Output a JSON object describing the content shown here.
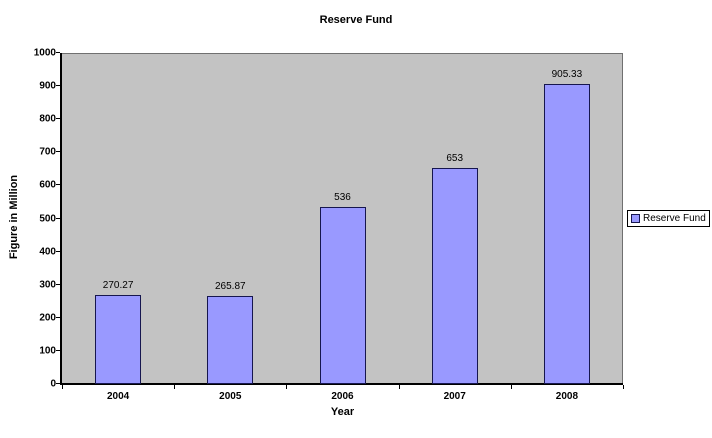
{
  "chart_data": {
    "type": "bar",
    "title": "Reserve Fund",
    "categories": [
      "2004",
      "2005",
      "2006",
      "2007",
      "2008"
    ],
    "values": [
      270.27,
      265.87,
      536,
      653,
      905.33
    ],
    "value_labels": [
      "270.27",
      "265.87",
      "536",
      "653",
      "905.33"
    ],
    "xlabel": "Year",
    "ylabel": "Figure in Million",
    "ylim": [
      0,
      1000
    ],
    "ytick_step": 100,
    "grid": false,
    "legend": {
      "label": "Reserve Fund",
      "position": "right"
    },
    "colors": {
      "bar_fill": "#9999ff",
      "bar_border": "#16164e",
      "plot_bg": "#c3c3c3",
      "axis": "#000000",
      "background": "#ffffff"
    }
  }
}
